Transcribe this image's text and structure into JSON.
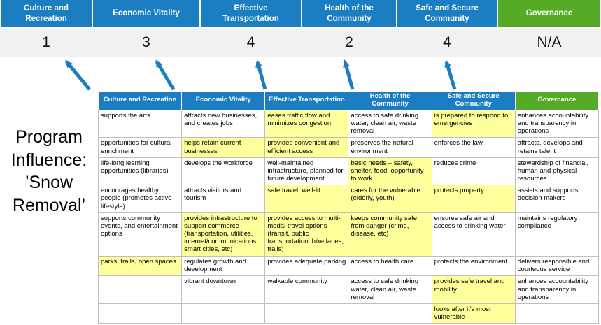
{
  "title": "Program Influence: ’Snow Removal’",
  "pillars": [
    {
      "label": "Culture and Recreation",
      "score": "1",
      "theme": "blue"
    },
    {
      "label": "Economic Vitality",
      "score": "3",
      "theme": "blue"
    },
    {
      "label": "Effective Transportation",
      "score": "4",
      "theme": "blue"
    },
    {
      "label": "Health of the Community",
      "score": "2",
      "theme": "blue"
    },
    {
      "label": "Safe and Secure Community",
      "score": "4",
      "theme": "blue"
    },
    {
      "label": "Governance",
      "score": "N/A",
      "theme": "green"
    }
  ],
  "arrows": {
    "count": 5,
    "direction": "up",
    "color": "#1B7EC2"
  },
  "table": {
    "headers": [
      {
        "label": "Culture and Recreation",
        "theme": "blue"
      },
      {
        "label": "Economic Vitality",
        "theme": "blue"
      },
      {
        "label": "Effective Transportation",
        "theme": "blue"
      },
      {
        "label": "Health of the Community",
        "theme": "blue"
      },
      {
        "label": "Safe and Secure Community",
        "theme": "blue"
      },
      {
        "label": "Governance",
        "theme": "green"
      }
    ],
    "rows": [
      [
        {
          "text": "supports the arts",
          "highlight": false
        },
        {
          "text": "attracts new businesses, and creates jobs",
          "highlight": false
        },
        {
          "text": "eases traffic flow and minimizes congestion",
          "highlight": true
        },
        {
          "text": "access to safe drinking water, clean air, waste removal",
          "highlight": false
        },
        {
          "text": "is prepared to respond to emergencies",
          "highlight": true
        },
        {
          "text": "enhances accountability and transparency in operations",
          "highlight": false
        }
      ],
      [
        {
          "text": "opportunities for cultural enrichment",
          "highlight": false
        },
        {
          "text": "helps retain current businesses",
          "highlight": true
        },
        {
          "text": "provides convenient and efficient access",
          "highlight": true
        },
        {
          "text": "preserves the natural environment",
          "highlight": false
        },
        {
          "text": "enforces the law",
          "highlight": false
        },
        {
          "text": "attracts, develops and retains talent",
          "highlight": false
        }
      ],
      [
        {
          "text": "life-long learning opportunities (libraries)",
          "highlight": false
        },
        {
          "text": "develops the workforce",
          "highlight": false
        },
        {
          "text": "well-maintained infrastructure, planned for future development",
          "highlight": false
        },
        {
          "text": "basic needs – safety, shelter, food, opportunity to work",
          "highlight": true
        },
        {
          "text": "reduces crime",
          "highlight": false
        },
        {
          "text": "stewardship of financial, human and physical resources",
          "highlight": false
        }
      ],
      [
        {
          "text": "encourages healthy people (promotes active lifestyle)",
          "highlight": false
        },
        {
          "text": "attracts visitors and tourism",
          "highlight": false
        },
        {
          "text": "safe travel, well-lit",
          "highlight": true
        },
        {
          "text": "cares for the vulnerable (elderly, youth)",
          "highlight": true
        },
        {
          "text": "protects property",
          "highlight": true
        },
        {
          "text": "assists and supports decision makers",
          "highlight": false
        }
      ],
      [
        {
          "text": "supports community events, and entertainment options",
          "highlight": false
        },
        {
          "text": "provides infrastructure to support commerce (transportation, utilities, internet/communications, smart cities, etc)",
          "highlight": true
        },
        {
          "text": "provides access to multi-modal travel options (transit, public transportation, bike lanes, trails)",
          "highlight": true
        },
        {
          "text": "keeps community safe from danger (crime, disease, etc)",
          "highlight": true
        },
        {
          "text": "ensures safe air and access to drinking water",
          "highlight": false
        },
        {
          "text": "maintains regulatory compliance",
          "highlight": false
        }
      ],
      [
        {
          "text": "parks, trails, open spaces",
          "highlight": true
        },
        {
          "text": "regulates growth and development",
          "highlight": false
        },
        {
          "text": "provides adequate parking",
          "highlight": false
        },
        {
          "text": "access to health care",
          "highlight": false
        },
        {
          "text": "protects the environment",
          "highlight": false
        },
        {
          "text": "delivers responsible and courteous service",
          "highlight": false
        }
      ],
      [
        {
          "text": "",
          "highlight": false
        },
        {
          "text": "vibrant downtown",
          "highlight": false
        },
        {
          "text": "walkable community",
          "highlight": false
        },
        {
          "text": "access to safe drinking water, clean air, waste removal",
          "highlight": false
        },
        {
          "text": "provides safe travel and mobility",
          "highlight": true
        },
        {
          "text": "enhances accountability and transparency in operations",
          "highlight": false
        }
      ],
      [
        {
          "text": "",
          "highlight": false
        },
        {
          "text": "",
          "highlight": false
        },
        {
          "text": "",
          "highlight": false
        },
        {
          "text": "",
          "highlight": false
        },
        {
          "text": "looks after it's most vulnerable",
          "highlight": true
        },
        {
          "text": "",
          "highlight": false
        }
      ]
    ]
  },
  "colors": {
    "pillar_blue": "#1B7EC2",
    "pillar_green": "#55AB26",
    "highlight_yellow": "#FFFF9C",
    "score_band_bg": "#F1F1F1",
    "table_border": "#BFBFBF",
    "arrow_blue": "#1B7EC2"
  }
}
